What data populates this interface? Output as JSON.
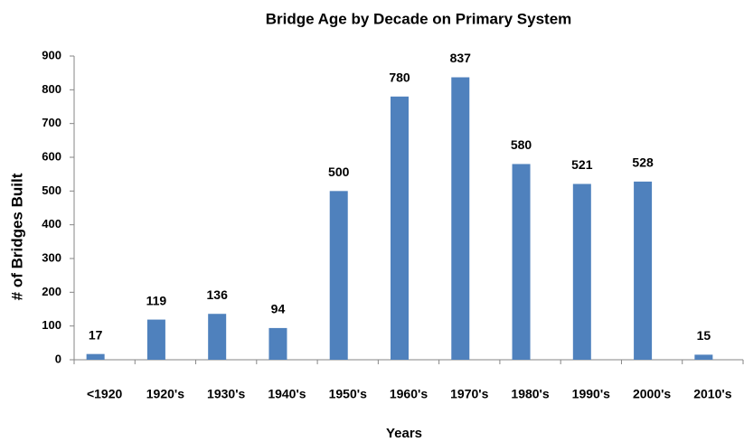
{
  "chart_data": {
    "type": "bar",
    "title": "Bridge Age by Decade on Primary System",
    "x_label": "Years",
    "y_label": "# of Bridges Built",
    "categories": [
      "<1920",
      "1920's",
      "1930's",
      "1940's",
      "1950's",
      "1960's",
      "1970's",
      "1980's",
      "1990's",
      "2000's",
      "2010's"
    ],
    "values": [
      17,
      119,
      136,
      94,
      500,
      780,
      837,
      580,
      521,
      528,
      15
    ],
    "color": "#4f81bd",
    "ylim": [
      0,
      900
    ],
    "yticks": [
      0,
      100,
      200,
      300,
      400,
      500,
      600,
      700,
      800,
      900
    ],
    "grid": false
  }
}
